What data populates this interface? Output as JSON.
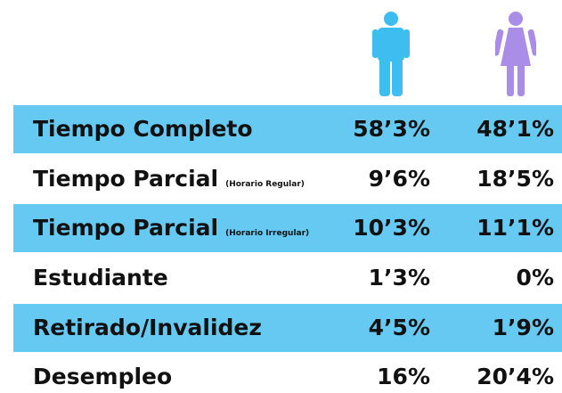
{
  "table": {
    "rows": [
      {
        "label": "Tiempo Completo",
        "male": "58’3%",
        "female": "48’1%"
      },
      {
        "label": "Tiempo Parcial",
        "sublabel": "(Horario Regular)",
        "male": "9’6%",
        "female": "18’5%"
      },
      {
        "label": "Tiempo Parcial",
        "sublabel": "(Horario Irregular)",
        "male": "10’3%",
        "female": "11’1%"
      },
      {
        "label": "Estudiante",
        "male": "1’3%",
        "female": "0%"
      },
      {
        "label": "Retirado/Invalidez",
        "male": "4’5%",
        "female": "1’9%"
      },
      {
        "label": "Desempleo",
        "male": "16%",
        "female": "20’4%"
      }
    ]
  }
}
